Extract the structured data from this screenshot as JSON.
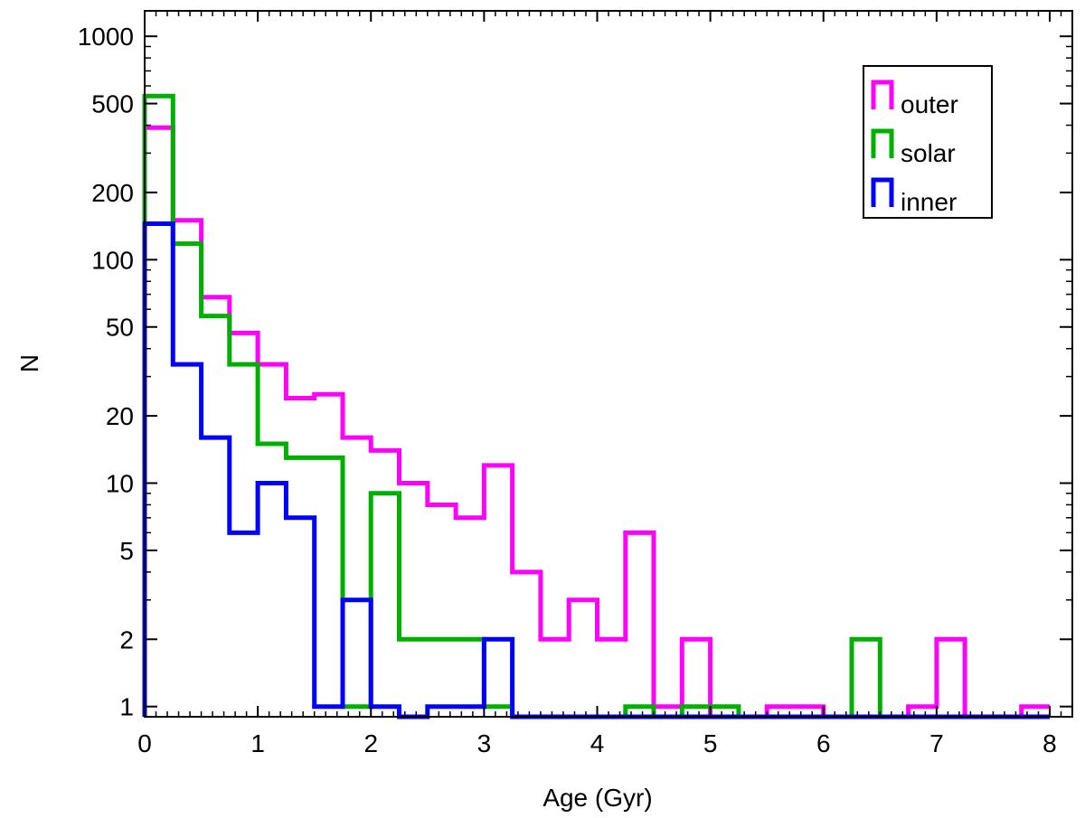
{
  "chart_data": {
    "type": "histogram-step",
    "xlabel": "Age (Gyr)",
    "ylabel": "N",
    "xlim": [
      0,
      8.2
    ],
    "ylim": [
      0.9,
      1300
    ],
    "yscale": "log",
    "bin_width": 0.25,
    "x_ticks": [
      0,
      1,
      2,
      3,
      4,
      5,
      6,
      7,
      8
    ],
    "x_tick_labels": [
      "0",
      "1",
      "2",
      "3",
      "4",
      "5",
      "6",
      "7",
      "8"
    ],
    "y_ticks": [
      1,
      2,
      5,
      10,
      20,
      50,
      100,
      200,
      500,
      1000
    ],
    "y_tick_labels": [
      "1",
      "2",
      "5",
      "10",
      "20",
      "50",
      "100",
      "200",
      "500",
      "1000"
    ],
    "legend_position": "top-right",
    "series": [
      {
        "name": "outer",
        "color": "#ff00ff",
        "values": [
          390,
          150,
          68,
          47,
          34,
          24,
          25,
          16,
          14,
          10,
          8,
          7,
          12,
          4,
          2,
          3,
          2,
          6,
          1,
          2,
          0,
          0,
          1,
          1,
          0,
          0,
          0,
          1,
          2,
          0,
          0,
          1
        ]
      },
      {
        "name": "solar",
        "color": "#00b000",
        "values": [
          540,
          118,
          56,
          34,
          15,
          13,
          13,
          1,
          9,
          2,
          2,
          2,
          1,
          0,
          0,
          0,
          0,
          1,
          0,
          1,
          1,
          0,
          0,
          0,
          0,
          2,
          0,
          0,
          0,
          0,
          0,
          0
        ]
      },
      {
        "name": "inner",
        "color": "#0000ff",
        "values": [
          145,
          34,
          16,
          6,
          10,
          7,
          1,
          3,
          1,
          0,
          1,
          1,
          2,
          0,
          0,
          0,
          0,
          0,
          0,
          0,
          0,
          0,
          0,
          0,
          0,
          0,
          0,
          0,
          0,
          0,
          0,
          0
        ]
      }
    ]
  }
}
